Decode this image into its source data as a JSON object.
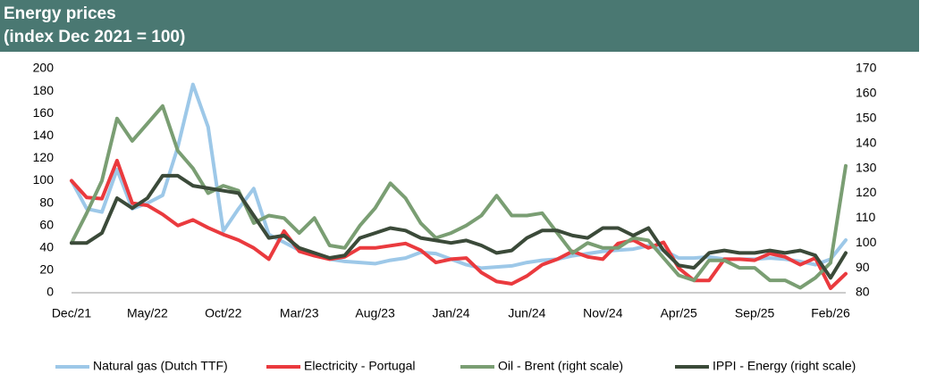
{
  "chart_data": {
    "type": "line",
    "title": "Energy prices",
    "subtitle": "(index Dec 2021 = 100)",
    "categories": [
      "Dec/21",
      null,
      null,
      null,
      null,
      "May/22",
      null,
      null,
      null,
      null,
      "Oct/22",
      null,
      null,
      null,
      null,
      "Mar/23",
      null,
      null,
      null,
      null,
      "Aug/23",
      null,
      null,
      null,
      null,
      "Jan/24",
      null,
      null,
      null,
      null,
      "Jun/24",
      null,
      null,
      null,
      null,
      "Nov/24",
      null,
      null,
      null,
      null,
      "Apr/25",
      null,
      null,
      null,
      null,
      "Sep/25",
      null,
      null,
      null,
      null,
      "Feb/26",
      null
    ],
    "ylim": [
      0,
      200
    ],
    "yticks": [
      0,
      20,
      40,
      60,
      80,
      100,
      120,
      140,
      160,
      180,
      200
    ],
    "y2lim": [
      80,
      170
    ],
    "y2ticks": [
      80,
      90,
      100,
      110,
      120,
      130,
      140,
      150,
      160,
      170
    ],
    "grid": false,
    "legend": "bottom",
    "series": [
      {
        "name": "Natural gas (Dutch TTF)",
        "color": "#9dc8e8",
        "values": [
          100,
          75,
          72,
          110,
          75,
          80,
          87,
          130,
          186,
          148,
          55,
          75,
          93,
          52,
          45,
          38,
          35,
          30,
          28,
          27,
          26,
          29,
          31,
          36,
          35,
          30,
          25,
          22,
          23,
          24,
          27,
          29,
          30,
          33,
          35,
          37,
          38,
          39,
          42,
          38,
          31,
          31,
          32,
          30,
          30,
          30,
          31,
          30,
          28,
          25,
          30,
          47
        ]
      },
      {
        "name": "Electricity - Portugal",
        "color": "#ea3a3e",
        "values": [
          100,
          85,
          84,
          118,
          80,
          78,
          70,
          60,
          65,
          58,
          52,
          47,
          40,
          30,
          55,
          37,
          33,
          30,
          32,
          40,
          40,
          42,
          44,
          38,
          27,
          30,
          31,
          18,
          10,
          8,
          15,
          25,
          30,
          37,
          32,
          30,
          44,
          47,
          40,
          45,
          22,
          11,
          11,
          30,
          30,
          29,
          35,
          32,
          25,
          31,
          4,
          17
        ]
      },
      {
        "name": "Oil - Brent (right scale)",
        "color": "#7a9e73",
        "axis": "y2",
        "values": [
          100,
          112,
          125,
          150,
          141,
          148,
          155,
          137,
          130,
          120,
          123,
          121,
          108,
          111,
          110,
          104,
          110,
          99,
          98,
          107,
          114,
          124,
          118,
          108,
          102,
          104,
          107,
          111,
          119,
          111,
          111,
          112,
          104,
          96,
          100,
          98,
          98,
          102,
          101,
          94,
          87,
          85,
          93,
          93,
          90,
          90,
          85,
          85,
          82,
          86,
          92,
          131
        ]
      },
      {
        "name": "IPPI - Energy (right scale)",
        "color": "#3b4a39",
        "axis": "y2",
        "values": [
          100,
          100,
          104,
          118,
          114,
          118,
          127,
          127,
          123,
          122,
          121,
          120,
          111,
          102,
          103,
          98,
          96,
          94,
          95,
          102,
          104,
          106,
          105,
          102,
          101,
          100,
          101,
          99,
          96,
          97,
          102,
          105,
          105,
          103,
          102,
          106,
          106,
          103,
          106,
          97,
          91,
          90,
          96,
          97,
          96,
          96,
          97,
          96,
          97,
          95,
          86,
          96
        ]
      }
    ]
  }
}
